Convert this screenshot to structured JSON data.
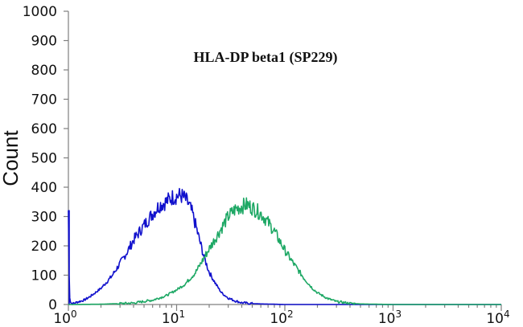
{
  "chart_data": {
    "type": "line",
    "title": "HLA-DP beta1 (SP229)",
    "xlabel": "",
    "ylabel": "Count",
    "xscale": "log",
    "xlim": [
      1,
      10000
    ],
    "ylim": [
      0,
      1000
    ],
    "yticks": [
      "0",
      "100",
      "200",
      "300",
      "400",
      "500",
      "600",
      "700",
      "800",
      "900",
      "1000"
    ],
    "xticks": [
      {
        "value": 1,
        "base": "10",
        "exp": "0"
      },
      {
        "value": 10,
        "base": "10",
        "exp": "1"
      },
      {
        "value": 100,
        "base": "10",
        "exp": "2"
      },
      {
        "value": 1000,
        "base": "10",
        "exp": "3"
      },
      {
        "value": 10000,
        "base": "10",
        "exp": "4"
      }
    ],
    "grid": false,
    "legend": "none",
    "series": [
      {
        "color": "#1010cc",
        "x": [
          1.0,
          1.02,
          1.04,
          1.06,
          1.1,
          1.2,
          1.4,
          1.6,
          2.0,
          2.5,
          3.0,
          3.5,
          4.0,
          5.0,
          6.0,
          7.0,
          8.0,
          9.0,
          10.0,
          11.0,
          12.0,
          13.0,
          14.0,
          15.0,
          16.0,
          18.0,
          20.0,
          23.0,
          26.0,
          30.0,
          35.0,
          40.0,
          50.0,
          60.0,
          80.0,
          100.0,
          150.0,
          200.0,
          500.0,
          1000.0,
          10000.0
        ],
        "y": [
          320,
          40,
          12,
          5,
          3,
          8,
          15,
          28,
          55,
          95,
          140,
          180,
          220,
          270,
          310,
          340,
          350,
          365,
          370,
          372,
          360,
          340,
          310,
          270,
          230,
          160,
          110,
          70,
          40,
          22,
          12,
          6,
          3,
          2,
          1,
          0,
          0,
          0,
          0,
          0,
          0
        ]
      },
      {
        "color": "#1ea865",
        "x": [
          1.0,
          2.0,
          4.0,
          6.0,
          8.0,
          10.0,
          12.0,
          15.0,
          18.0,
          20.0,
          25.0,
          30.0,
          35.0,
          40.0,
          45.0,
          50.0,
          55.0,
          60.0,
          65.0,
          70.0,
          80.0,
          90.0,
          100.0,
          120.0,
          150.0,
          180.0,
          200.0,
          250.0,
          300.0,
          400.0,
          500.0,
          1000.0,
          10000.0
        ],
        "y": [
          0,
          1,
          5,
          15,
          30,
          50,
          70,
          110,
          160,
          190,
          250,
          300,
          325,
          335,
          340,
          330,
          320,
          310,
          295,
          280,
          250,
          215,
          185,
          140,
          90,
          55,
          40,
          20,
          10,
          4,
          2,
          0,
          0
        ]
      }
    ]
  }
}
